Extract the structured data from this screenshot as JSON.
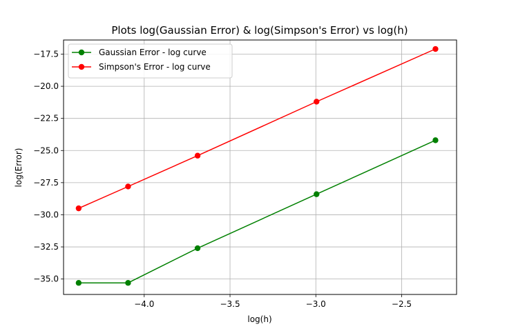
{
  "chart_data": {
    "type": "line",
    "title": "Plots log(Gaussian Error) & log(Simpson's Error) vs log(h)",
    "xlabel": "log(h)",
    "ylabel": "log(Error)",
    "xlim": [
      -4.47,
      -2.18
    ],
    "ylim": [
      -36.2,
      -16.4
    ],
    "xticks": [
      -4.0,
      -3.5,
      -3.0,
      -2.5
    ],
    "xtick_labels": [
      "−4.0",
      "−3.5",
      "−3.0",
      "−2.5"
    ],
    "yticks": [
      -35.0,
      -32.5,
      -30.0,
      -27.5,
      -25.0,
      -22.5,
      -20.0,
      -17.5
    ],
    "ytick_labels": [
      "−35.0",
      "−32.5",
      "−30.0",
      "−27.5",
      "−25.0",
      "−22.5",
      "−20.0",
      "−17.5"
    ],
    "grid": true,
    "legend_position": "upper-left",
    "x": [
      -4.382,
      -4.094,
      -3.689,
      -2.996,
      -2.303
    ],
    "series": [
      {
        "name": "Gaussian Error - log curve",
        "color": "#008000",
        "marker": "circle",
        "values": [
          -35.3,
          -35.3,
          -32.6,
          -28.4,
          -24.2
        ]
      },
      {
        "name": "Simpson's Error - log curve",
        "color": "#ff0000",
        "marker": "circle",
        "values": [
          -29.5,
          -27.8,
          -25.4,
          -21.2,
          -17.1
        ]
      }
    ]
  }
}
